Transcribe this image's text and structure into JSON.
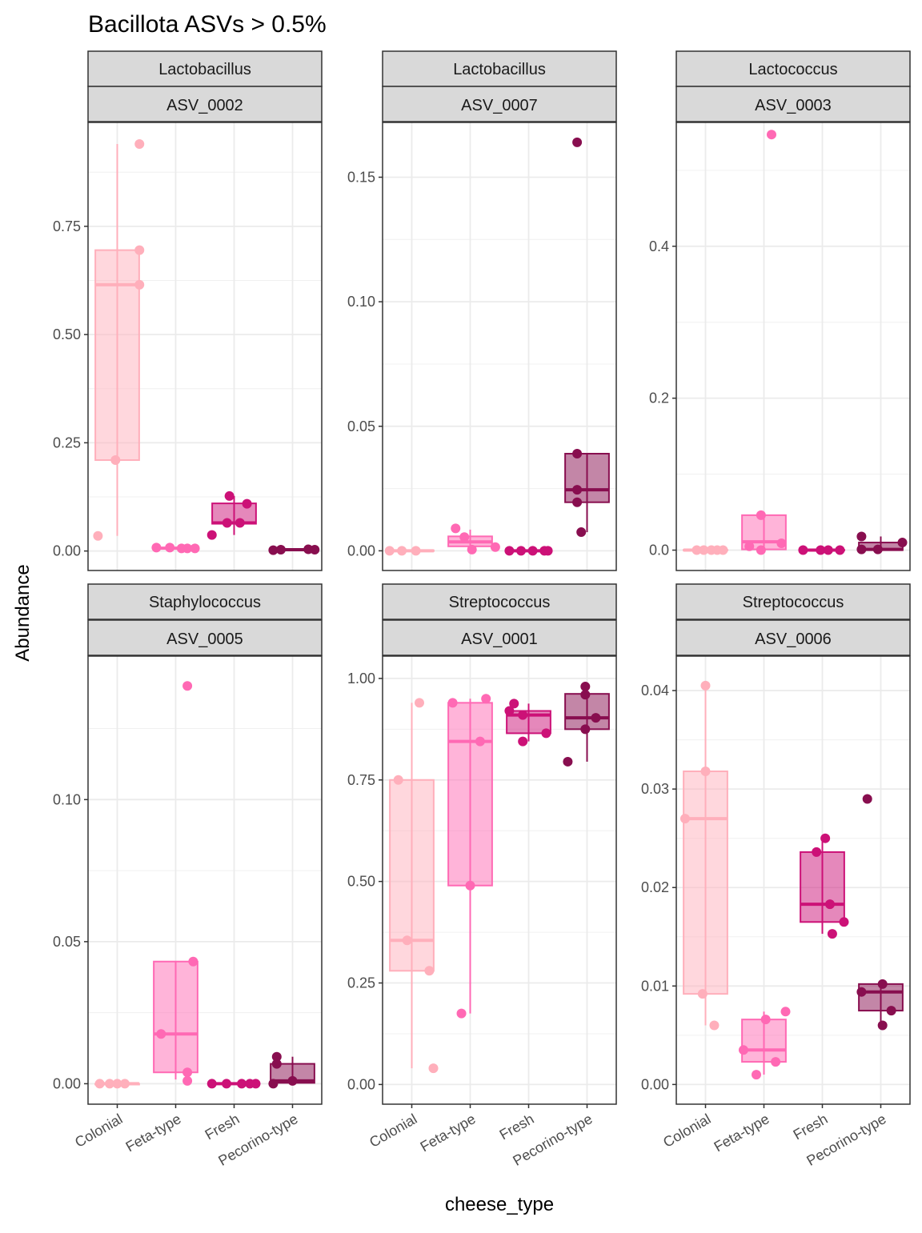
{
  "chart_data": {
    "type": "boxplot",
    "title": "Bacillota ASVs > 0.5%",
    "xlabel": "cheese_type",
    "ylabel": "Abundance",
    "categories": [
      "Colonial",
      "Feta-type",
      "Fresh",
      "Pecorino-type"
    ],
    "colors": {
      "Colonial": "#ffafbb",
      "Feta-type": "#ff69b4",
      "Fresh": "#cc1177",
      "Pecorino-type": "#880e4f"
    },
    "facets": [
      {
        "genus": "Lactobacillus",
        "asv": "ASV_0002",
        "ylim": [
          -0.045,
          0.99
        ],
        "yticks": [
          0,
          0.25,
          0.5,
          0.75
        ],
        "yticklabels": [
          "0.00",
          "0.25",
          "0.50",
          "0.75"
        ],
        "boxes": [
          {
            "q1": 0.21,
            "median": 0.615,
            "q3": 0.695,
            "whisker_low": 0.035,
            "whisker_high": 0.94
          },
          {
            "q1": 0.0055,
            "median": 0.0065,
            "q3": 0.0075,
            "whisker_low": 0.005,
            "whisker_high": 0.008
          },
          {
            "q1": 0.063,
            "median": 0.065,
            "q3": 0.11,
            "whisker_low": 0.037,
            "whisker_high": 0.127
          },
          {
            "q1": 0.002,
            "median": 0.003,
            "q3": 0.004,
            "whisker_low": 0.001,
            "whisker_high": 0.005
          }
        ],
        "points": [
          [
            [
              -0.33,
              0.035
            ],
            [
              0.38,
              0.94
            ],
            [
              0.38,
              0.695
            ],
            [
              0.38,
              0.615
            ],
            [
              -0.03,
              0.21
            ]
          ],
          [
            [
              -0.33,
              0.008
            ],
            [
              -0.1,
              0.008
            ],
            [
              0.1,
              0.006
            ],
            [
              0.2,
              0.006
            ],
            [
              0.33,
              0.006
            ]
          ],
          [
            [
              -0.38,
              0.037
            ],
            [
              -0.08,
              0.127
            ],
            [
              0.22,
              0.109
            ],
            [
              -0.12,
              0.065
            ],
            [
              0.1,
              0.065
            ]
          ],
          [
            [
              -0.33,
              0.002
            ],
            [
              -0.2,
              0.003
            ],
            [
              0.27,
              0.004
            ],
            [
              0.38,
              0.003
            ]
          ]
        ]
      },
      {
        "genus": "Lactobacillus",
        "asv": "ASV_0007",
        "ylim": [
          -0.0079,
          0.172
        ],
        "yticks": [
          0,
          0.05,
          0.1,
          0.15
        ],
        "yticklabels": [
          "0.00",
          "0.05",
          "0.10",
          "0.15"
        ],
        "boxes": [
          {
            "q1": 0,
            "median": 0,
            "q3": 0.0002,
            "whisker_low": 0,
            "whisker_high": 0.0003
          },
          {
            "q1": 0.0018,
            "median": 0.0036,
            "q3": 0.0058,
            "whisker_low": 0.0005,
            "whisker_high": 0.0085
          },
          {
            "q1": 0,
            "median": 0,
            "q3": 0.0001,
            "whisker_low": 0,
            "whisker_high": 0.0002
          },
          {
            "q1": 0.0195,
            "median": 0.0245,
            "q3": 0.039,
            "whisker_low": 0.0075,
            "whisker_high": 0.039
          }
        ],
        "points": [
          [
            [
              -0.38,
              0
            ],
            [
              -0.17,
              0
            ],
            [
              0.07,
              0
            ]
          ],
          [
            [
              -0.25,
              0.009
            ],
            [
              -0.1,
              0.0055
            ],
            [
              0.03,
              0.0005
            ],
            [
              0.43,
              0.0015
            ]
          ],
          [
            [
              -0.33,
              0
            ],
            [
              -0.13,
              0
            ],
            [
              0.07,
              0
            ],
            [
              0.27,
              0
            ],
            [
              0.33,
              0
            ]
          ],
          [
            [
              -0.17,
              0.164
            ],
            [
              -0.17,
              0.039
            ],
            [
              -0.17,
              0.0245
            ],
            [
              -0.17,
              0.0195
            ],
            [
              -0.1,
              0.0075
            ]
          ]
        ]
      },
      {
        "genus": "Lactococcus",
        "asv": "ASV_0003",
        "ylim": [
          -0.0268,
          0.563
        ],
        "yticks": [
          0,
          0.2,
          0.4
        ],
        "yticklabels": [
          "0.0",
          "0.2",
          "0.4"
        ],
        "boxes": [
          {
            "q1": 0,
            "median": 0,
            "q3": 0.0005,
            "whisker_low": 0,
            "whisker_high": 0.001
          },
          {
            "q1": 0.001,
            "median": 0.011,
            "q3": 0.046,
            "whisker_low": 0,
            "whisker_high": 0.046
          },
          {
            "q1": 0,
            "median": 0,
            "q3": 0.0005,
            "whisker_low": 0,
            "whisker_high": 0.001
          },
          {
            "q1": 0,
            "median": 0.001,
            "q3": 0.01,
            "whisker_low": 0,
            "whisker_high": 0.018
          }
        ],
        "points": [
          [
            [
              -0.15,
              0
            ],
            [
              -0.03,
              0
            ],
            [
              0.1,
              0
            ],
            [
              0.2,
              0
            ],
            [
              0.3,
              0
            ]
          ],
          [
            [
              -0.25,
              0.005
            ],
            [
              -0.05,
              0.046
            ],
            [
              -0.05,
              0
            ],
            [
              0.13,
              0.547
            ],
            [
              0.3,
              0.009
            ]
          ],
          [
            [
              -0.33,
              0
            ],
            [
              -0.03,
              0
            ],
            [
              0.1,
              0
            ],
            [
              0.3,
              0
            ]
          ],
          [
            [
              -0.33,
              0.001
            ],
            [
              -0.33,
              0.018
            ],
            [
              -0.05,
              0.001
            ],
            [
              0.37,
              0.01
            ]
          ]
        ]
      },
      {
        "genus": "Staphylococcus",
        "asv": "ASV_0005",
        "ylim": [
          -0.0072,
          0.1505
        ],
        "yticks": [
          0,
          0.05,
          0.1
        ],
        "yticklabels": [
          "0.00",
          "0.05",
          "0.10"
        ],
        "boxes": [
          {
            "q1": 0,
            "median": 0,
            "q3": 0,
            "whisker_low": 0,
            "whisker_high": 0
          },
          {
            "q1": 0.004,
            "median": 0.0175,
            "q3": 0.043,
            "whisker_low": 0.0015,
            "whisker_high": 0.043
          },
          {
            "q1": 0,
            "median": 0,
            "q3": 0.0001,
            "whisker_low": 0,
            "whisker_high": 0.0002
          },
          {
            "q1": 0.0003,
            "median": 0.001,
            "q3": 0.007,
            "whisker_low": 0,
            "whisker_high": 0.0095
          }
        ],
        "points": [
          [
            [
              -0.3,
              0
            ],
            [
              -0.13,
              0
            ],
            [
              0.0,
              0
            ],
            [
              0.13,
              0
            ]
          ],
          [
            [
              -0.25,
              0.0175
            ],
            [
              0.2,
              0.14
            ],
            [
              0.3,
              0.043
            ],
            [
              0.2,
              0.004
            ],
            [
              0.2,
              0.001
            ]
          ],
          [
            [
              -0.38,
              0
            ],
            [
              -0.13,
              0
            ],
            [
              0.13,
              0
            ],
            [
              0.27,
              0
            ],
            [
              0.37,
              0
            ]
          ],
          [
            [
              -0.33,
              0
            ],
            [
              -0.27,
              0.007
            ],
            [
              -0.27,
              0.0095
            ],
            [
              0.0,
              0.001
            ]
          ]
        ]
      },
      {
        "genus": "Streptococcus",
        "asv": "ASV_0001",
        "ylim": [
          -0.0485,
          1.055
        ],
        "yticks": [
          0,
          0.25,
          0.5,
          0.75,
          1.0
        ],
        "yticklabels": [
          "0.00",
          "0.25",
          "0.50",
          "0.75",
          "1.00"
        ],
        "boxes": [
          {
            "q1": 0.28,
            "median": 0.355,
            "q3": 0.75,
            "whisker_low": 0.04,
            "whisker_high": 0.94
          },
          {
            "q1": 0.49,
            "median": 0.845,
            "q3": 0.94,
            "whisker_low": 0.175,
            "whisker_high": 0.95
          },
          {
            "q1": 0.865,
            "median": 0.91,
            "q3": 0.92,
            "whisker_low": 0.845,
            "whisker_high": 0.938
          },
          {
            "q1": 0.875,
            "median": 0.903,
            "q3": 0.962,
            "whisker_low": 0.795,
            "whisker_high": 0.98
          }
        ],
        "points": [
          [
            [
              -0.23,
              0.75
            ],
            [
              -0.08,
              0.355
            ],
            [
              0.13,
              0.94
            ],
            [
              0.3,
              0.28
            ],
            [
              0.37,
              0.04
            ]
          ],
          [
            [
              -0.3,
              0.94
            ],
            [
              -0.15,
              0.175
            ],
            [
              0.0,
              0.49
            ],
            [
              0.17,
              0.845
            ],
            [
              0.27,
              0.95
            ]
          ],
          [
            [
              -0.33,
              0.92
            ],
            [
              -0.25,
              0.938
            ],
            [
              -0.1,
              0.91
            ],
            [
              -0.1,
              0.845
            ],
            [
              0.3,
              0.865
            ]
          ],
          [
            [
              -0.33,
              0.795
            ],
            [
              -0.03,
              0.96
            ],
            [
              -0.03,
              0.98
            ],
            [
              -0.03,
              0.875
            ],
            [
              0.15,
              0.903
            ]
          ]
        ]
      },
      {
        "genus": "Streptococcus",
        "asv": "ASV_0006",
        "ylim": [
          -0.002,
          0.0435
        ],
        "yticks": [
          0,
          0.01,
          0.02,
          0.03,
          0.04
        ],
        "yticklabels": [
          "0.00",
          "0.01",
          "0.02",
          "0.03",
          "0.04"
        ],
        "boxes": [
          {
            "q1": 0.0092,
            "median": 0.027,
            "q3": 0.0318,
            "whisker_low": 0.006,
            "whisker_high": 0.0405
          },
          {
            "q1": 0.0023,
            "median": 0.0035,
            "q3": 0.0066,
            "whisker_low": 0.001,
            "whisker_high": 0.0074
          },
          {
            "q1": 0.0165,
            "median": 0.0183,
            "q3": 0.0236,
            "whisker_low": 0.0153,
            "whisker_high": 0.025
          },
          {
            "q1": 0.0075,
            "median": 0.0094,
            "q3": 0.0102,
            "whisker_low": 0.006,
            "whisker_high": 0.0102
          }
        ],
        "points": [
          [
            [
              -0.35,
              0.027
            ],
            [
              -0.05,
              0.0092
            ],
            [
              0.0,
              0.0318
            ],
            [
              0.0,
              0.0405
            ],
            [
              0.15,
              0.006
            ]
          ],
          [
            [
              -0.35,
              0.0035
            ],
            [
              -0.13,
              0.001
            ],
            [
              0.03,
              0.0066
            ],
            [
              0.2,
              0.0023
            ],
            [
              0.37,
              0.0074
            ]
          ],
          [
            [
              -0.1,
              0.0236
            ],
            [
              0.05,
              0.025
            ],
            [
              0.13,
              0.0183
            ],
            [
              0.17,
              0.0153
            ],
            [
              0.37,
              0.0165
            ]
          ],
          [
            [
              -0.33,
              0.0094
            ],
            [
              -0.23,
              0.029
            ],
            [
              0.03,
              0.0102
            ],
            [
              0.03,
              0.006
            ],
            [
              0.18,
              0.0075
            ]
          ]
        ]
      }
    ]
  }
}
